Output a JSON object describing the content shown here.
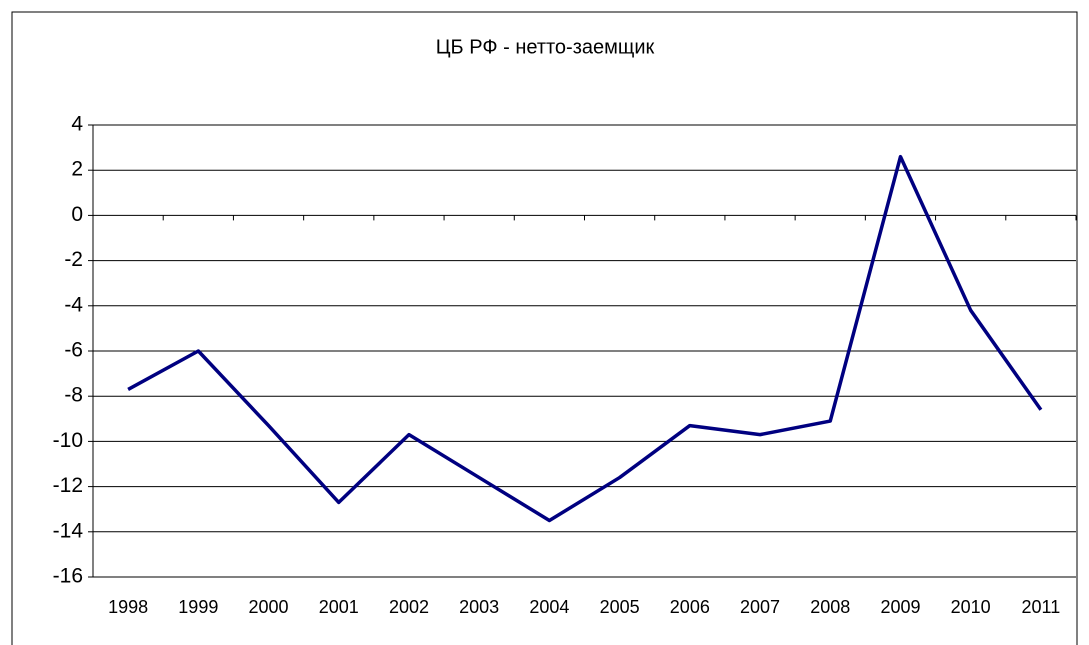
{
  "chart_data": {
    "type": "line",
    "title": "ЦБ РФ - нетто-заемщик",
    "categories": [
      "1998",
      "1999",
      "2000",
      "2001",
      "2002",
      "2003",
      "2004",
      "2005",
      "2006",
      "2007",
      "2008",
      "2009",
      "2010",
      "2011"
    ],
    "values": [
      -7.7,
      -6.0,
      -9.3,
      -12.7,
      -9.7,
      -11.6,
      -13.5,
      -11.6,
      -9.3,
      -9.7,
      -9.1,
      2.6,
      -4.2,
      -8.6
    ],
    "color": "#000080",
    "ylim": [
      -16,
      4
    ],
    "yticks": [
      -16,
      -14,
      -12,
      -10,
      -8,
      -6,
      -4,
      -2,
      0,
      2,
      4
    ],
    "grid": true
  }
}
